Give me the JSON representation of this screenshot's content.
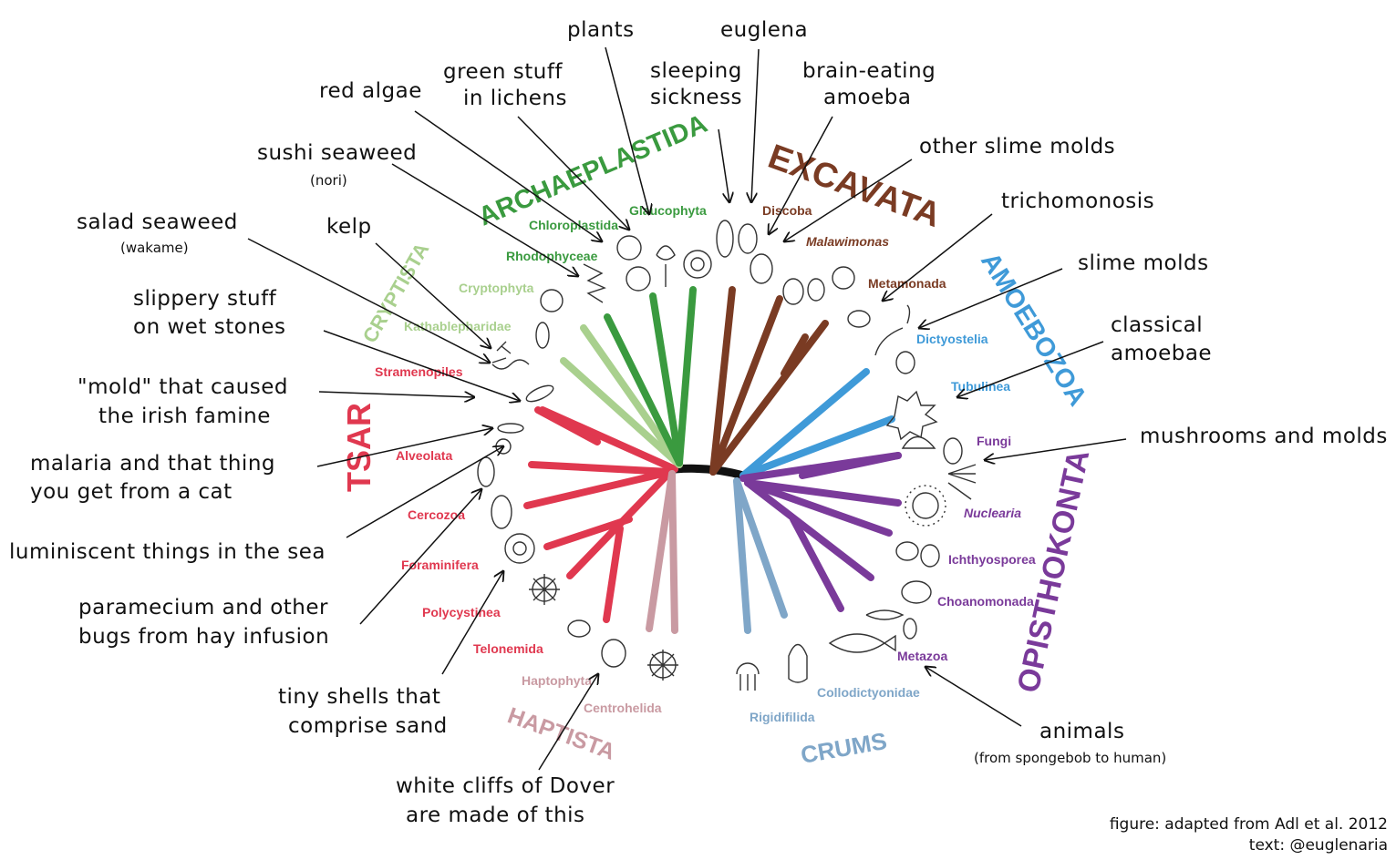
{
  "palette": {
    "tsar": "#e0384f",
    "cryptista": "#a9d08e",
    "archaeplastida": "#3a9a3f",
    "excavata": "#7a3b23",
    "amoebozoa": "#3f9ad8",
    "opisthokonta": "#7a3a9a",
    "crums": "#7fa6c8",
    "haptista": "#c99aa2",
    "backbone": "#111111"
  },
  "supergroups": {
    "tsar": "TSAR",
    "cryptista": "CRYPTISTA",
    "archaeplastida": "ARCHAEPLASTIDA",
    "excavata": "EXCAVATA",
    "amoebozoa": "AMOEBOZOA",
    "opisthokonta": "OPISTHOKONTA",
    "crums": "CRUMS",
    "haptista": "HAPTISTA"
  },
  "taxa": {
    "stramenopiles": "Stramenopiles",
    "alveolata": "Alveolata",
    "cercozoa": "Cercozoa",
    "foraminifera": "Foraminifera",
    "polycystinea": "Polycystinea",
    "telonemida": "Telonemida",
    "haptophyta": "Haptophyta",
    "centrohelida": "Centrohelida",
    "rigidifilida": "Rigidifilida",
    "collodictyonidae": "Collodictyonidae",
    "metazoa": "Metazoa",
    "choanomonada": "Choanomonada",
    "ichthyosporea": "Ichthyosporea",
    "nuclearia": "Nuclearia",
    "fungi": "Fungi",
    "tubulinea": "Tubulinea",
    "dictyostelia": "Dictyostelia",
    "metamonada": "Metamonada",
    "malawimonas": "Malawimonas",
    "discoba": "Discoba",
    "glaucophyta": "Glaucophyta",
    "chloroplastida": "Chloroplastida",
    "rhodophyceae": "Rhodophyceae",
    "cryptophyta": "Cryptophyta",
    "kathablepharidae": "Kathablepharidae"
  },
  "annotations": {
    "plants": "plants",
    "euglena": "euglena",
    "sleeping_1": "sleeping",
    "sleeping_2": "sickness",
    "brain_1": "brain-eating",
    "brain_2": "amoeba",
    "green_1": "green stuff",
    "green_2": "in lichens",
    "red_algae": "red algae",
    "sushi_1": "sushi seaweed",
    "sushi_2": "(nori)",
    "salad_1": "salad seaweed",
    "salad_2": "(wakame)",
    "kelp": "kelp",
    "slippery_1": "slippery stuff",
    "slippery_2": "on wet stones",
    "mold_1": "\"mold\" that caused",
    "mold_2": "the irish famine",
    "malaria_1": "malaria and that thing",
    "malaria_2": "you get from a cat",
    "lumin": "luminiscent things in the sea",
    "param_1": "paramecium and other",
    "param_2": "bugs from hay infusion",
    "shells_1": "tiny shells that",
    "shells_2": "comprise sand",
    "dover_1": "white cliffs of Dover",
    "dover_2": "are made of this",
    "other_slime": "other slime molds",
    "trich": "trichomonosis",
    "slime": "slime molds",
    "classical_1": "classical",
    "classical_2": "amoebae",
    "mushrooms": "mushrooms and molds",
    "animals_1": "animals",
    "animals_2": "(from spongebob to human)"
  },
  "credits": {
    "figure": "figure: adapted from Adl et al. 2012",
    "text": "text: @euglenaria"
  }
}
